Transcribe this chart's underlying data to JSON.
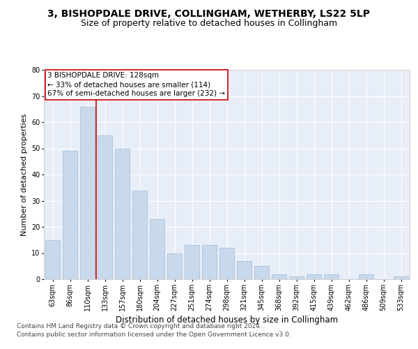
{
  "title": "3, BISHOPDALE DRIVE, COLLINGHAM, WETHERBY, LS22 5LP",
  "subtitle": "Size of property relative to detached houses in Collingham",
  "xlabel": "Distribution of detached houses by size in Collingham",
  "ylabel": "Number of detached properties",
  "categories": [
    "63sqm",
    "86sqm",
    "110sqm",
    "133sqm",
    "157sqm",
    "180sqm",
    "204sqm",
    "227sqm",
    "251sqm",
    "274sqm",
    "298sqm",
    "321sqm",
    "345sqm",
    "368sqm",
    "392sqm",
    "415sqm",
    "439sqm",
    "462sqm",
    "486sqm",
    "509sqm",
    "533sqm"
  ],
  "values": [
    15,
    49,
    66,
    55,
    50,
    34,
    23,
    10,
    13,
    13,
    12,
    7,
    5,
    2,
    1,
    2,
    2,
    0,
    2,
    0,
    1
  ],
  "bar_color": "#c9d9ed",
  "bar_edge_color": "#a0b8d0",
  "reference_line_index": 2.5,
  "reference_line_color": "#cc0000",
  "annotation_line1": "3 BISHOPDALE DRIVE: 128sqm",
  "annotation_line2": "← 33% of detached houses are smaller (114)",
  "annotation_line3": "67% of semi-detached houses are larger (232) →",
  "annotation_box_color": "#ffffff",
  "annotation_box_edge_color": "#cc0000",
  "ylim": [
    0,
    80
  ],
  "yticks": [
    0,
    10,
    20,
    30,
    40,
    50,
    60,
    70,
    80
  ],
  "footer_line1": "Contains HM Land Registry data © Crown copyright and database right 2024.",
  "footer_line2": "Contains public sector information licensed under the Open Government Licence v3.0.",
  "title_fontsize": 10,
  "subtitle_fontsize": 9,
  "xlabel_fontsize": 8.5,
  "ylabel_fontsize": 8,
  "tick_fontsize": 7,
  "footer_fontsize": 6.5,
  "annotation_fontsize": 7.5,
  "bar_facecolor": "#d4e3f5",
  "background_color": "#e8eef8",
  "figure_background": "#ffffff",
  "grid_color": "#ffffff"
}
